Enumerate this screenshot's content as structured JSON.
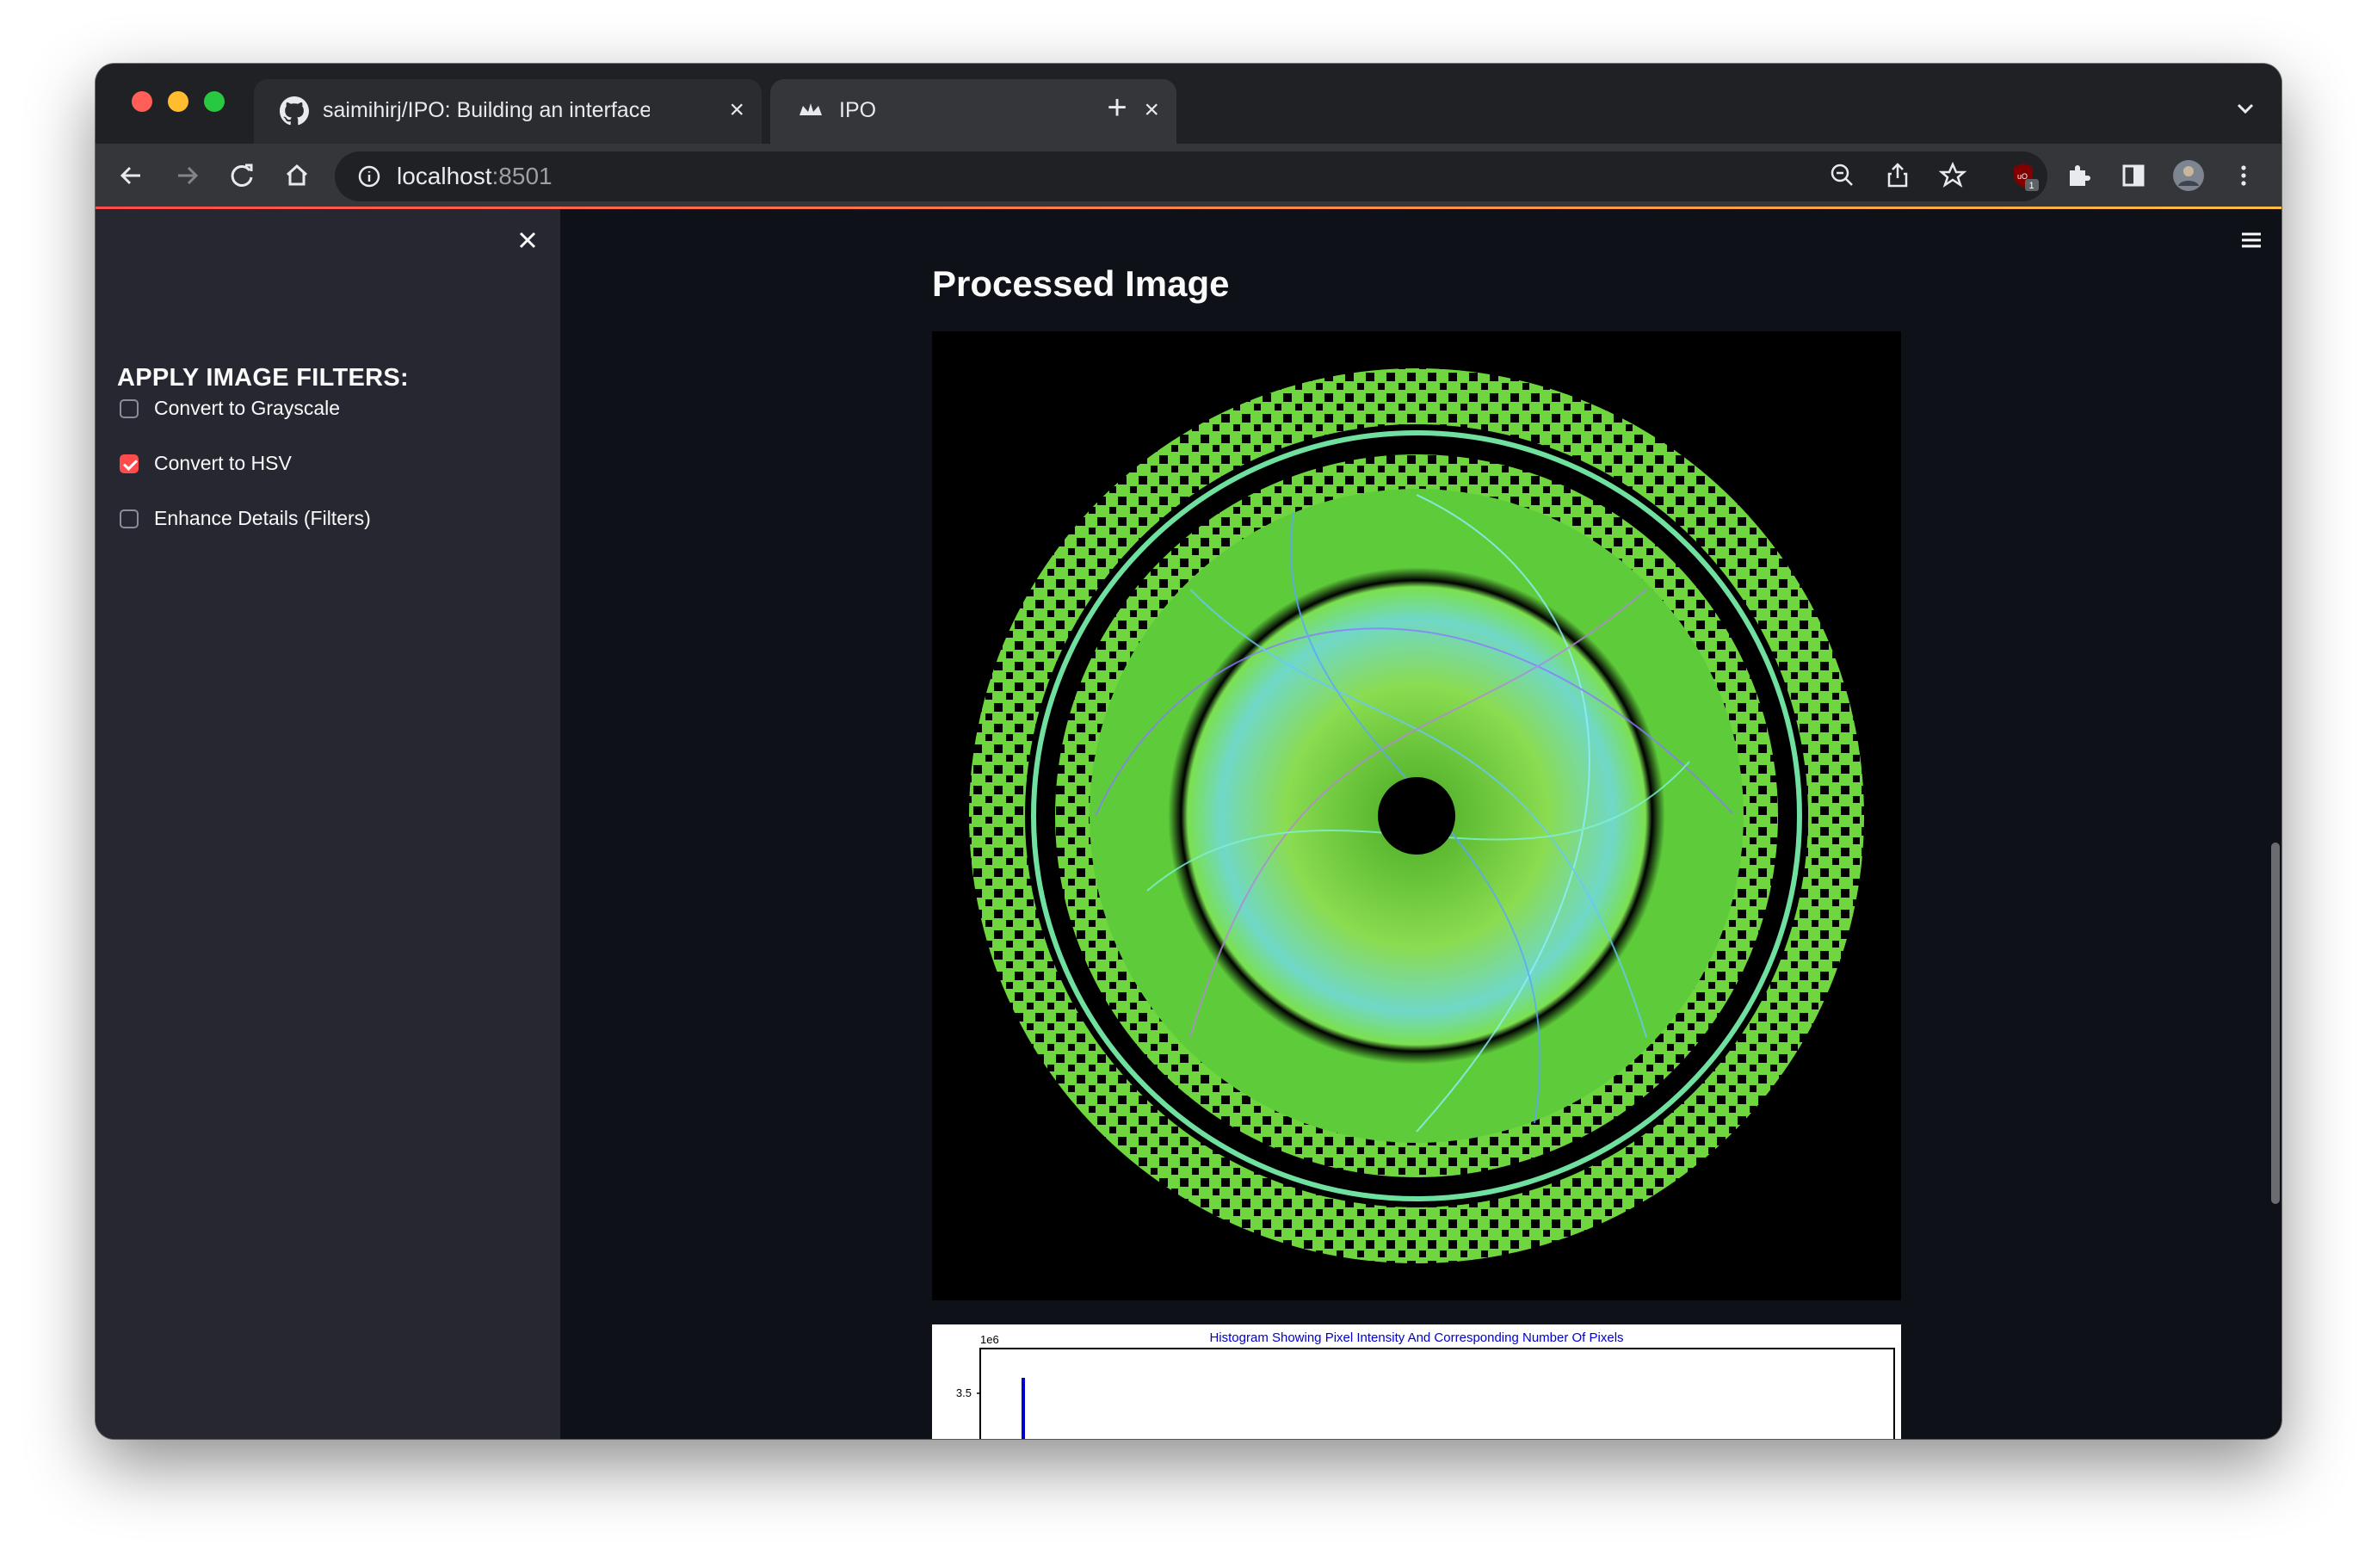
{
  "browser": {
    "tabs": [
      {
        "title": "saimihirj/IPO: Building an interface",
        "icon": "github-icon",
        "active": false
      },
      {
        "title": "IPO",
        "icon": "streamlit-crown-icon",
        "active": true
      }
    ],
    "url_host": "localhost",
    "url_port": ":8501",
    "extension_badge": "1"
  },
  "sidebar": {
    "title": "APPLY IMAGE FILTERS:",
    "options": [
      {
        "label": "Convert to Grayscale",
        "checked": false
      },
      {
        "label": "Convert to HSV",
        "checked": true
      },
      {
        "label": "Enhance Details (Filters)",
        "checked": false
      }
    ]
  },
  "main": {
    "title": "Processed Image",
    "histogram": {
      "title": "Histogram Showing Pixel Intensity And Corresponding Number Of Pixels",
      "scale_label": "1e6",
      "y_tick": "3.5",
      "bar_color": "#0000cc"
    }
  },
  "colors": {
    "accent": "#ff4b4b",
    "sidebar_bg": "#262730",
    "main_bg": "#0e1117"
  }
}
